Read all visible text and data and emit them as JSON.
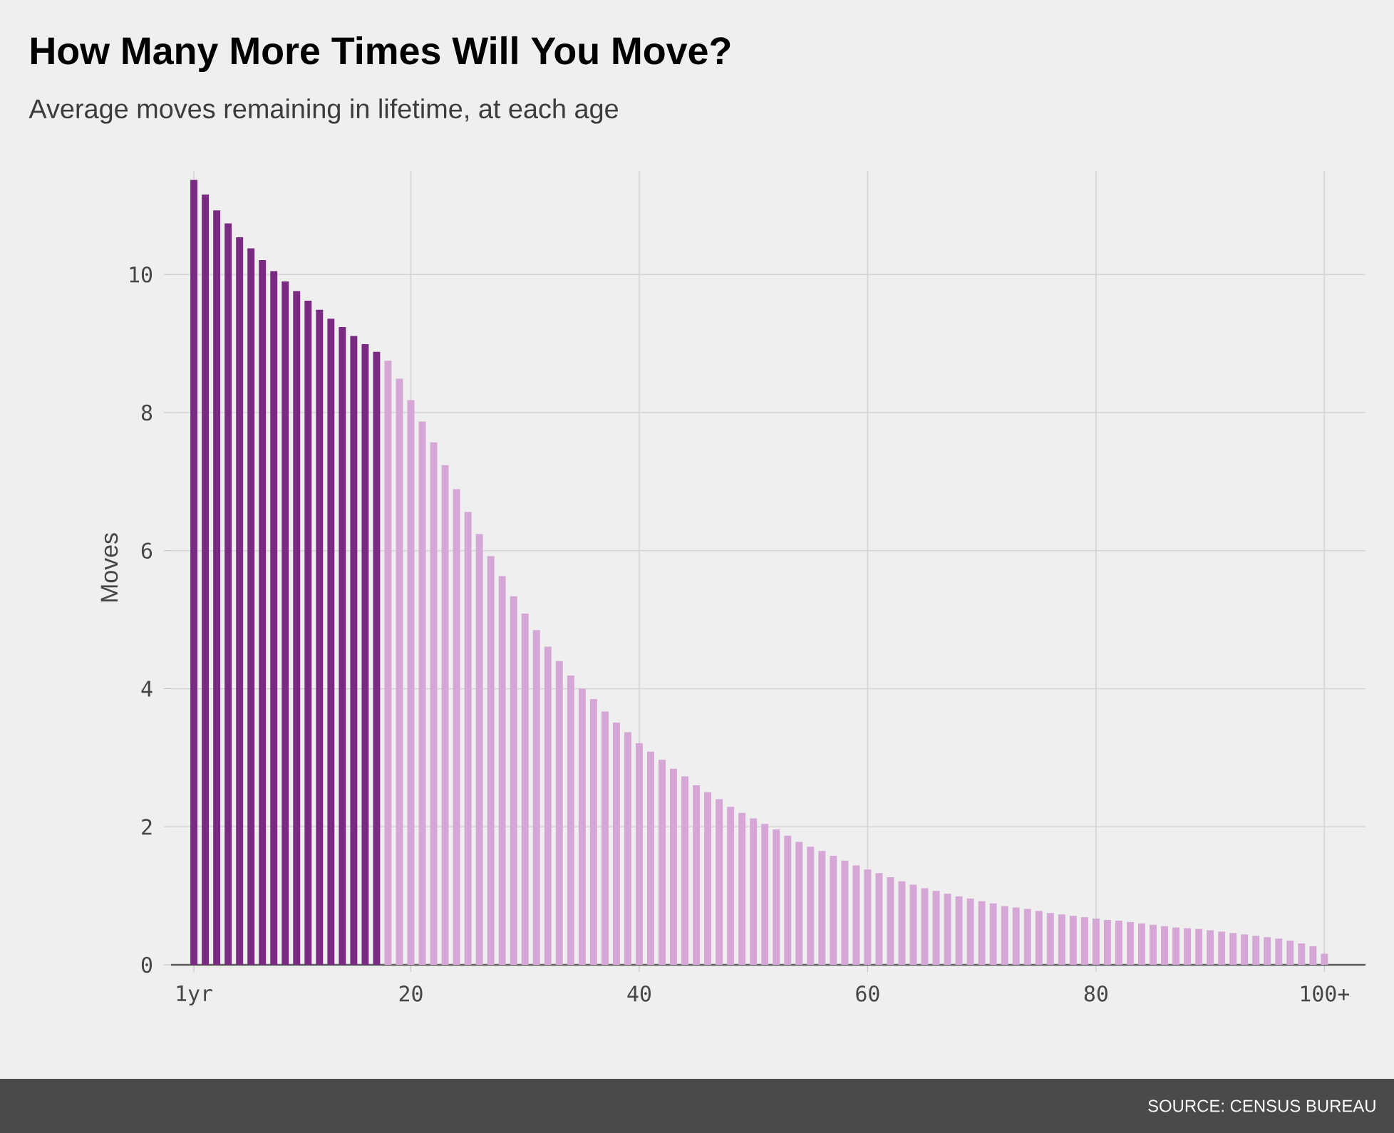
{
  "chart_data": {
    "type": "bar",
    "title": "How Many More Times Will You Move?",
    "subtitle": "Average moves remaining in lifetime, at each age",
    "ylabel": "Moves",
    "annotations": [
      "SOURCE: CENSUS BUREAU"
    ],
    "x": [
      1,
      2,
      3,
      4,
      5,
      6,
      7,
      8,
      9,
      10,
      11,
      12,
      13,
      14,
      15,
      16,
      17,
      18,
      19,
      20,
      21,
      22,
      23,
      24,
      25,
      26,
      27,
      28,
      29,
      30,
      31,
      32,
      33,
      34,
      35,
      36,
      37,
      38,
      39,
      40,
      41,
      42,
      43,
      44,
      45,
      46,
      47,
      48,
      49,
      50,
      51,
      52,
      53,
      54,
      55,
      56,
      57,
      58,
      59,
      60,
      61,
      62,
      63,
      64,
      65,
      66,
      67,
      68,
      69,
      70,
      71,
      72,
      73,
      74,
      75,
      76,
      77,
      78,
      79,
      80,
      81,
      82,
      83,
      84,
      85,
      86,
      87,
      88,
      89,
      90,
      91,
      92,
      93,
      94,
      95,
      96,
      97,
      98,
      99,
      100
    ],
    "values": [
      11.37,
      11.16,
      10.93,
      10.74,
      10.54,
      10.38,
      10.21,
      10.05,
      9.9,
      9.76,
      9.62,
      9.49,
      9.36,
      9.24,
      9.11,
      8.99,
      8.88,
      8.75,
      8.49,
      8.18,
      7.87,
      7.57,
      7.24,
      6.89,
      6.56,
      6.24,
      5.92,
      5.63,
      5.34,
      5.09,
      4.85,
      4.61,
      4.4,
      4.19,
      4.0,
      3.85,
      3.67,
      3.51,
      3.37,
      3.21,
      3.09,
      2.97,
      2.84,
      2.73,
      2.6,
      2.5,
      2.4,
      2.29,
      2.2,
      2.12,
      2.04,
      1.96,
      1.87,
      1.78,
      1.71,
      1.65,
      1.58,
      1.51,
      1.44,
      1.38,
      1.33,
      1.27,
      1.21,
      1.16,
      1.11,
      1.07,
      1.03,
      0.99,
      0.96,
      0.92,
      0.89,
      0.85,
      0.83,
      0.81,
      0.78,
      0.75,
      0.73,
      0.71,
      0.69,
      0.67,
      0.65,
      0.64,
      0.62,
      0.6,
      0.58,
      0.56,
      0.54,
      0.53,
      0.52,
      0.5,
      0.48,
      0.46,
      0.44,
      0.42,
      0.4,
      0.38,
      0.35,
      0.31,
      0.27,
      0.16
    ],
    "colors": [
      "#7b2a83",
      "#7b2a83",
      "#7b2a83",
      "#7b2a83",
      "#7b2a83",
      "#7b2a83",
      "#7b2a83",
      "#7b2a83",
      "#7b2a83",
      "#7b2a83",
      "#7b2a83",
      "#7b2a83",
      "#7b2a83",
      "#7b2a83",
      "#7b2a83",
      "#7b2a83",
      "#7b2a83",
      "#d6a6d6",
      "#d6a6d6",
      "#d6a6d6",
      "#d6a6d6",
      "#d6a6d6",
      "#d6a6d6",
      "#d6a6d6",
      "#d6a6d6",
      "#d6a6d6",
      "#d6a6d6",
      "#d6a6d6",
      "#d6a6d6",
      "#d6a6d6",
      "#d6a6d6",
      "#d6a6d6",
      "#d6a6d6",
      "#d6a6d6",
      "#d6a6d6",
      "#d6a6d6",
      "#d6a6d6",
      "#d6a6d6",
      "#d6a6d6",
      "#d6a6d6",
      "#d6a6d6",
      "#d6a6d6",
      "#d6a6d6",
      "#d6a6d6",
      "#d6a6d6",
      "#d6a6d6",
      "#d6a6d6",
      "#d6a6d6",
      "#d6a6d6",
      "#d6a6d6",
      "#d6a6d6",
      "#d6a6d6",
      "#d6a6d6",
      "#d6a6d6",
      "#d6a6d6",
      "#d6a6d6",
      "#d6a6d6",
      "#d6a6d6",
      "#d6a6d6",
      "#d6a6d6",
      "#d6a6d6",
      "#d6a6d6",
      "#d6a6d6",
      "#d6a6d6",
      "#d6a6d6",
      "#d6a6d6",
      "#d6a6d6",
      "#d6a6d6",
      "#d6a6d6",
      "#d6a6d6",
      "#d6a6d6",
      "#d6a6d6",
      "#d6a6d6",
      "#d6a6d6",
      "#d6a6d6",
      "#d6a6d6",
      "#d6a6d6",
      "#d6a6d6",
      "#d6a6d6",
      "#d6a6d6",
      "#d6a6d6",
      "#d6a6d6",
      "#d6a6d6",
      "#d6a6d6",
      "#d6a6d6",
      "#d6a6d6",
      "#d6a6d6",
      "#d6a6d6",
      "#d6a6d6",
      "#d6a6d6",
      "#d6a6d6",
      "#d6a6d6",
      "#d6a6d6",
      "#d6a6d6",
      "#d6a6d6",
      "#d6a6d6",
      "#d6a6d6",
      "#d6a6d6",
      "#d6a6d6",
      "#d6a6d6"
    ],
    "xlim": [
      -1,
      103.6
    ],
    "ylim": [
      0,
      11.5
    ],
    "xticks": [
      {
        "value": 1,
        "label": "1yr"
      },
      20,
      40,
      60,
      80,
      {
        "value": 100,
        "label": "100+"
      }
    ],
    "yticks": [
      0,
      2,
      4,
      6,
      8,
      10
    ],
    "grid": true
  }
}
